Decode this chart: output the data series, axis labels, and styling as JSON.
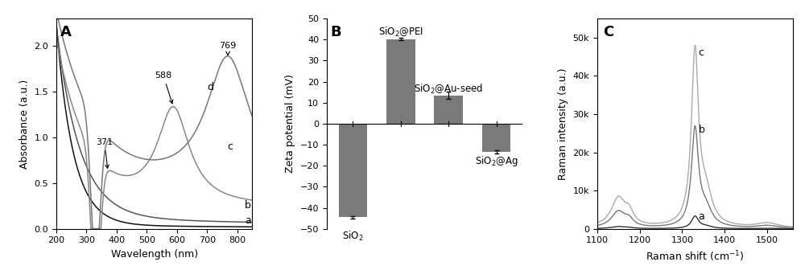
{
  "panel_A": {
    "xlabel": "Wavelength (nm)",
    "ylabel": "Absorbance (a.u.)",
    "xlim": [
      200,
      850
    ],
    "ylim": [
      0.0,
      2.3
    ],
    "yticks": [
      0.0,
      0.5,
      1.0,
      1.5,
      2.0
    ]
  },
  "panel_B": {
    "ylabel": "Zeta potential (mV)",
    "categories": [
      "SiO$_2$",
      "SiO$_2$@PEI",
      "SiO$_2$@Au-seed",
      "SiO$_2$@Ag"
    ],
    "values": [
      -44.5,
      40.2,
      13.5,
      -13.5
    ],
    "errors": [
      0.5,
      0.5,
      1.8,
      0.8
    ],
    "bar_color": "#7a7a7a",
    "ylim": [
      -50,
      50
    ],
    "yticks": [
      -50,
      -40,
      -30,
      -20,
      -10,
      0,
      10,
      20,
      30,
      40,
      50
    ]
  },
  "panel_C": {
    "xlabel": "Raman shift (cm$^{-1}$)",
    "ylabel": "Raman intensity (a.u.)",
    "xlim": [
      1100,
      1560
    ],
    "ylim": [
      0,
      55000
    ],
    "yticks": [
      0,
      10000,
      20000,
      30000,
      40000,
      50000
    ],
    "ytick_labels": [
      "0",
      "10k",
      "20k",
      "30k",
      "40k",
      "50k"
    ]
  },
  "line_color_a": "#111111",
  "line_color_b": "#555555",
  "line_color_c": "#888888",
  "line_color_d": "#777777",
  "raman_colors": [
    "#333333",
    "#777777",
    "#aaaaaa"
  ]
}
